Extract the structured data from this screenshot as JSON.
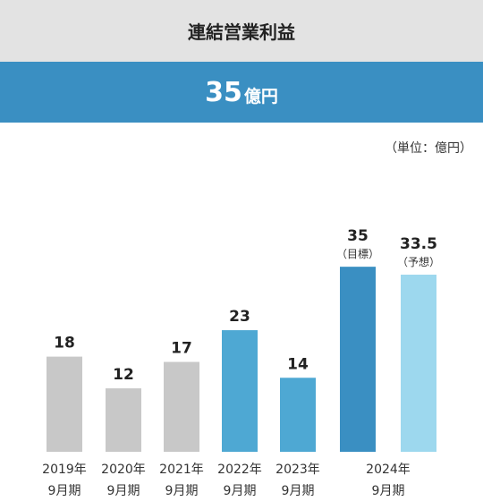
{
  "header": {
    "title": "連結営業利益",
    "headline_value": "35",
    "headline_unit": "億円",
    "unit_note": "（単位：億円）"
  },
  "chart_data": {
    "type": "bar",
    "title": "連結営業利益",
    "ylabel": "",
    "xlabel": "",
    "ylim": [
      0,
      35
    ],
    "grid": false,
    "legend": "none",
    "categories": [
      {
        "line1": "2019年",
        "line2": "9月期"
      },
      {
        "line1": "2020年",
        "line2": "9月期"
      },
      {
        "line1": "2021年",
        "line2": "9月期"
      },
      {
        "line1": "2022年",
        "line2": "9月期"
      },
      {
        "line1": "2023年",
        "line2": "9月期"
      },
      {
        "line1": "2024年",
        "line2": "9月期"
      },
      {
        "line1": "",
        "line2": ""
      }
    ],
    "bars": [
      {
        "value": 18,
        "label": "18",
        "sublabel": "",
        "color": "#c8c8c8"
      },
      {
        "value": 12,
        "label": "12",
        "sublabel": "",
        "color": "#c8c8c8"
      },
      {
        "value": 17,
        "label": "17",
        "sublabel": "",
        "color": "#c8c8c8"
      },
      {
        "value": 23,
        "label": "23",
        "sublabel": "",
        "color": "#4ea8d3"
      },
      {
        "value": 14,
        "label": "14",
        "sublabel": "",
        "color": "#4ea8d3"
      },
      {
        "value": 35,
        "label": "35",
        "sublabel": "（目標）",
        "color": "#3a8fc2"
      },
      {
        "value": 33.5,
        "label": "33.5",
        "sublabel": "（予想）",
        "color": "#9dd8ee"
      }
    ]
  }
}
